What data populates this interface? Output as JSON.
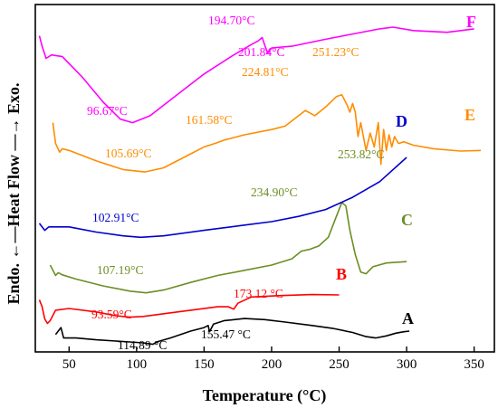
{
  "chart_data": {
    "type": "line",
    "title": "",
    "xlabel": "Temperature (°C)",
    "ylabel": "Endo. ←—Heat Flow —→ Exo.",
    "xlim": [
      25,
      365
    ],
    "ylim": [
      0,
      100
    ],
    "x_ticks": [
      50,
      100,
      150,
      200,
      250,
      300,
      350
    ],
    "grid": false,
    "legend": "none",
    "series": [
      {
        "name": "A",
        "color": "#000000",
        "points": [
          [
            40,
            5
          ],
          [
            44,
            7
          ],
          [
            46,
            4
          ],
          [
            48,
            4
          ],
          [
            55,
            4
          ],
          [
            70,
            3.5
          ],
          [
            90,
            3
          ],
          [
            105,
            2.6
          ],
          [
            112,
            2.2
          ],
          [
            116,
            3
          ],
          [
            125,
            4
          ],
          [
            140,
            6
          ],
          [
            150,
            7
          ],
          [
            153,
            7.6
          ],
          [
            154,
            5.8
          ],
          [
            157,
            8
          ],
          [
            165,
            9
          ],
          [
            180,
            9.6
          ],
          [
            195,
            9.3
          ],
          [
            210,
            8.6
          ],
          [
            230,
            7.6
          ],
          [
            245,
            6.8
          ],
          [
            260,
            5.6
          ],
          [
            270,
            4.4
          ],
          [
            277,
            4
          ],
          [
            285,
            4.6
          ],
          [
            292,
            5.4
          ],
          [
            298,
            5.8
          ],
          [
            302,
            6
          ]
        ],
        "labels": [
          "114.89 °C",
          "155.47 °C"
        ]
      },
      {
        "name": "B",
        "color": "#ff0000",
        "points": [
          [
            28,
            15
          ],
          [
            30,
            13
          ],
          [
            32,
            9.5
          ],
          [
            34,
            8.2
          ],
          [
            36,
            9
          ],
          [
            40,
            12
          ],
          [
            50,
            12.5
          ],
          [
            70,
            11.5
          ],
          [
            85,
            10.4
          ],
          [
            95,
            10
          ],
          [
            105,
            10.2
          ],
          [
            120,
            11
          ],
          [
            140,
            12
          ],
          [
            160,
            13
          ],
          [
            168,
            13
          ],
          [
            172,
            12.3
          ],
          [
            175,
            14
          ],
          [
            185,
            15.8
          ],
          [
            205,
            16.2
          ],
          [
            230,
            16.5
          ],
          [
            250,
            16.4
          ]
        ],
        "labels": [
          "93.59°C",
          "173.12 °C"
        ]
      },
      {
        "name": "C",
        "color": "#6b8e23",
        "points": [
          [
            36,
            25
          ],
          [
            38,
            23.5
          ],
          [
            40,
            22
          ],
          [
            42,
            22.8
          ],
          [
            45,
            22.2
          ],
          [
            55,
            21
          ],
          [
            75,
            19
          ],
          [
            95,
            17.5
          ],
          [
            107,
            17
          ],
          [
            120,
            17.8
          ],
          [
            140,
            20
          ],
          [
            160,
            22
          ],
          [
            180,
            23.5
          ],
          [
            200,
            25
          ],
          [
            215,
            26.8
          ],
          [
            222,
            29
          ],
          [
            228,
            29.5
          ],
          [
            235,
            30.5
          ],
          [
            242,
            33
          ],
          [
            248,
            39
          ],
          [
            252,
            43
          ],
          [
            255,
            42
          ],
          [
            258,
            35
          ],
          [
            262,
            28
          ],
          [
            266,
            23
          ],
          [
            270,
            22.5
          ],
          [
            275,
            24.5
          ],
          [
            285,
            25.6
          ],
          [
            300,
            26
          ]
        ],
        "labels": [
          "107.19°C",
          "234.90°C",
          "253.82°C"
        ]
      },
      {
        "name": "D",
        "color": "#0000cd",
        "points": [
          [
            28,
            37
          ],
          [
            32,
            35
          ],
          [
            35,
            36
          ],
          [
            50,
            36
          ],
          [
            70,
            34.5
          ],
          [
            90,
            33.4
          ],
          [
            103,
            33
          ],
          [
            120,
            33.4
          ],
          [
            150,
            35
          ],
          [
            180,
            36.5
          ],
          [
            200,
            37.5
          ],
          [
            220,
            39
          ],
          [
            240,
            41
          ],
          [
            260,
            44.5
          ],
          [
            280,
            49
          ],
          [
            300,
            56
          ]
        ],
        "labels": [
          "102.91°C"
        ]
      },
      {
        "name": "E",
        "color": "#ff8c00",
        "points": [
          [
            38,
            66
          ],
          [
            40,
            60
          ],
          [
            43,
            57.5
          ],
          [
            45,
            58.5
          ],
          [
            50,
            58
          ],
          [
            70,
            55
          ],
          [
            90,
            52.5
          ],
          [
            106,
            51.8
          ],
          [
            120,
            53
          ],
          [
            135,
            56
          ],
          [
            150,
            59
          ],
          [
            158,
            60
          ],
          [
            165,
            61
          ],
          [
            180,
            62.5
          ],
          [
            200,
            64
          ],
          [
            210,
            65
          ],
          [
            220,
            68
          ],
          [
            225,
            69.5
          ],
          [
            232,
            68
          ],
          [
            240,
            70.5
          ],
          [
            248,
            73.5
          ],
          [
            252,
            74
          ],
          [
            256,
            71
          ],
          [
            258,
            69
          ],
          [
            260,
            71.5
          ],
          [
            262,
            69
          ],
          [
            264,
            62
          ],
          [
            266,
            66
          ],
          [
            270,
            58
          ],
          [
            273,
            63
          ],
          [
            276,
            59
          ],
          [
            279,
            66
          ],
          [
            281,
            54
          ],
          [
            283,
            64
          ],
          [
            285,
            58
          ],
          [
            287,
            62.5
          ],
          [
            289,
            59
          ],
          [
            291,
            62
          ],
          [
            294,
            60
          ],
          [
            298,
            60.5
          ],
          [
            305,
            59.5
          ],
          [
            320,
            58.5
          ],
          [
            340,
            57.8
          ],
          [
            355,
            58
          ]
        ],
        "labels": [
          "105.69°C",
          "161.58°C",
          "224.81°C",
          "251.23°C"
        ]
      },
      {
        "name": "F",
        "color": "#ff00ff",
        "points": [
          [
            28,
            91
          ],
          [
            30,
            88
          ],
          [
            33,
            84.5
          ],
          [
            37,
            85.5
          ],
          [
            45,
            85
          ],
          [
            60,
            79
          ],
          [
            75,
            72
          ],
          [
            88,
            67
          ],
          [
            97,
            66
          ],
          [
            110,
            68
          ],
          [
            130,
            74
          ],
          [
            150,
            80
          ],
          [
            170,
            85
          ],
          [
            185,
            88.5
          ],
          [
            190,
            89.5
          ],
          [
            193,
            90.5
          ],
          [
            197,
            86
          ],
          [
            200,
            87.5
          ],
          [
            215,
            88
          ],
          [
            240,
            90
          ],
          [
            260,
            91.5
          ],
          [
            280,
            93
          ],
          [
            290,
            93.5
          ],
          [
            305,
            92.5
          ],
          [
            330,
            92
          ],
          [
            350,
            93
          ]
        ],
        "labels": [
          "96.67°C",
          "194.70°C",
          "201.84°C"
        ]
      }
    ]
  }
}
